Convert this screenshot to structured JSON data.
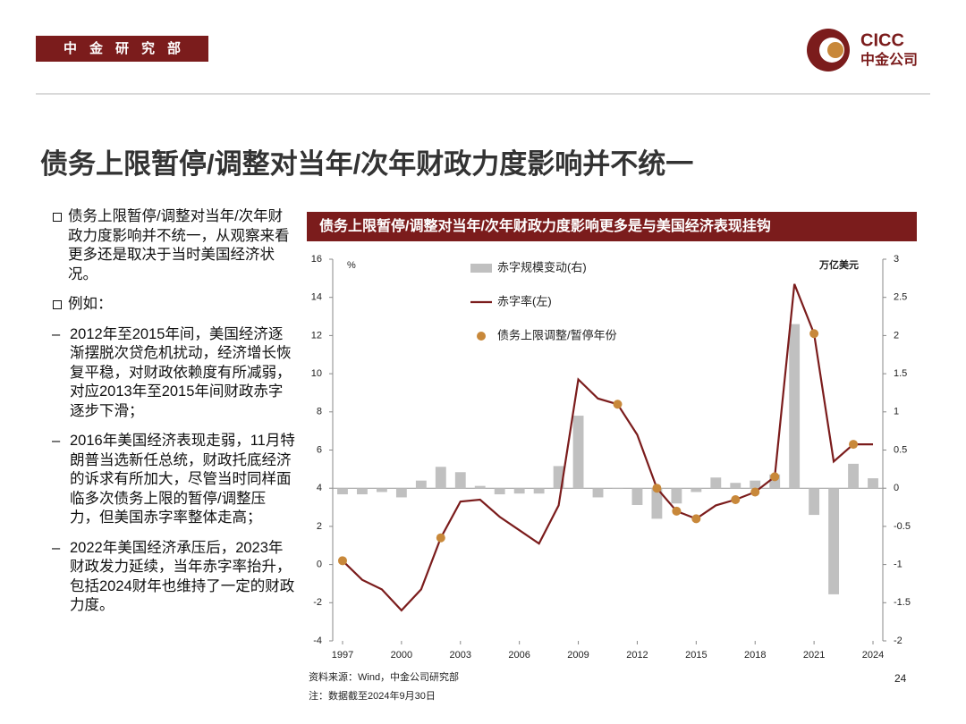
{
  "header": {
    "department": "中金研究部",
    "logo_en": "CICC",
    "logo_cn": "中金公司"
  },
  "title": "债务上限暂停/调整对当年/次年财政力度影响并不统一",
  "bullets": [
    {
      "text": "债务上限暂停/调整对当年/次年财政力度影响并不统一，从观察来看更多还是取决于当时美国经济状况。"
    },
    {
      "text": "例如：",
      "items": [
        "2012年至2015年间，美国经济逐渐摆脱次贷危机扰动，经济增长恢复平稳，对财政依赖度有所减弱，对应2013年至2015年间财政赤字逐步下滑；",
        "2016年美国经济表现走弱，11月特朗普当选新任总统，财政托底经济的诉求有所加大，尽管当时同样面临多次债务上限的暂停/调整压力，但美国赤字率整体走高；",
        "2022年美国经济承压后，2023年财政发力延续，当年赤字率抬升，包括2024财年也维持了一定的财政力度。"
      ]
    }
  ],
  "chart_data": {
    "type": "bar-line",
    "title": "债务上限暂停/调整对当年/次年财政力度影响更多是与美国经济表现挂钩",
    "ylabel": "%",
    "y2label": "万亿美元",
    "x": [
      1997,
      1998,
      1999,
      2000,
      2001,
      2002,
      2003,
      2004,
      2005,
      2006,
      2007,
      2008,
      2009,
      2010,
      2011,
      2012,
      2013,
      2014,
      2015,
      2016,
      2017,
      2018,
      2019,
      2020,
      2021,
      2022,
      2023,
      2024
    ],
    "xlim": [
      1996.5,
      2024.5
    ],
    "xticks": [
      1997,
      2000,
      2003,
      2006,
      2009,
      2012,
      2015,
      2018,
      2021,
      2024
    ],
    "ylim": [
      -4,
      16
    ],
    "yticks": [
      16,
      14,
      12,
      10,
      8,
      6,
      4,
      2,
      0,
      -2,
      -4
    ],
    "y2lim": [
      -2,
      3
    ],
    "y2ticks": [
      3,
      2.5,
      2,
      1.5,
      1,
      0.5,
      0,
      -0.5,
      -1,
      -1.5,
      -2
    ],
    "series": [
      {
        "name": "赤字规模变动(右)",
        "kind": "bar",
        "axis": "y2",
        "color": "#c0c0c0",
        "values": [
          -0.08,
          -0.08,
          -0.05,
          -0.12,
          0.1,
          0.28,
          0.21,
          0.03,
          -0.08,
          -0.07,
          -0.07,
          0.29,
          0.95,
          -0.12,
          -0.01,
          -0.22,
          -0.4,
          -0.2,
          -0.05,
          0.14,
          0.07,
          0.1,
          0.18,
          2.15,
          -0.35,
          -1.39,
          0.32,
          0.13
        ]
      },
      {
        "name": "赤字率(左)",
        "kind": "line",
        "color": "#7b1c1c",
        "values": [
          0.2,
          -0.8,
          -1.3,
          -2.4,
          -1.3,
          1.4,
          3.3,
          3.4,
          2.5,
          1.8,
          1.1,
          3.1,
          9.7,
          8.7,
          8.4,
          6.8,
          4.0,
          2.8,
          2.4,
          3.1,
          3.4,
          3.8,
          4.6,
          14.7,
          12.1,
          5.4,
          6.3,
          6.3
        ]
      },
      {
        "name": "债务上限调整/暂停年份",
        "kind": "dot",
        "color": "#c8883a",
        "values": [
          0.2,
          null,
          null,
          null,
          null,
          1.4,
          null,
          null,
          null,
          null,
          null,
          null,
          null,
          null,
          8.4,
          null,
          4.0,
          2.8,
          2.4,
          null,
          3.4,
          3.8,
          4.6,
          null,
          12.1,
          null,
          6.3,
          null
        ]
      }
    ]
  },
  "source": "资料来源：Wind，中金公司研究部",
  "note": "注：数据截至2024年9月30日",
  "page_number": "24"
}
